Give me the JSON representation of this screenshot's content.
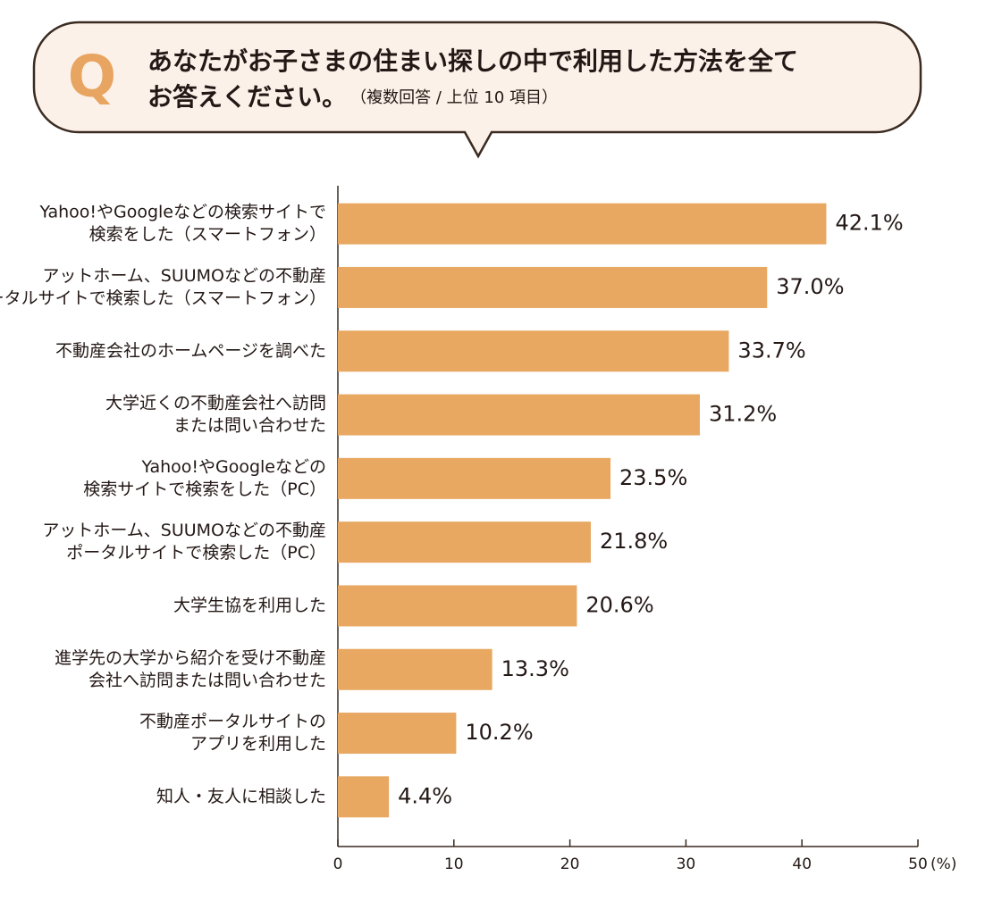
{
  "chart_data": {
    "type": "bar",
    "orientation": "horizontal",
    "q_label": "Q",
    "title": [
      "あなたがお子さまの住まい探しの中で利用した方法を全て",
      "お答えください。"
    ],
    "subtitle": "（複数回答 / 上位 10 項目）",
    "categories": [
      [
        "Yahoo!やGoogleなどの検索サイトで",
        "検索をした（スマートフォン）"
      ],
      [
        "アットホーム、SUUMOなどの不動産",
        "ポータルサイトで検索した（スマートフォン）"
      ],
      [
        "不動産会社のホームページを調べた"
      ],
      [
        "大学近くの不動産会社へ訪問",
        "または問い合わせた"
      ],
      [
        "Yahoo!やGoogleなどの",
        "検索サイトで検索をした（PC）"
      ],
      [
        "アットホーム、SUUMOなどの不動産",
        "ポータルサイトで検索した（PC）"
      ],
      [
        "大学生協を利用した"
      ],
      [
        "進学先の大学から紹介を受け不動産",
        "会社へ訪問または問い合わせた"
      ],
      [
        "不動産ポータルサイトの",
        "アプリを利用した"
      ],
      [
        "知人・友人に相談した"
      ]
    ],
    "values": [
      42.1,
      37.0,
      33.7,
      31.2,
      23.5,
      21.8,
      20.6,
      13.3,
      10.2,
      4.4
    ],
    "value_labels": [
      "42.1%",
      "37.0%",
      "33.7%",
      "31.2%",
      "23.5%",
      "21.8%",
      "20.6%",
      "13.3%",
      "10.2%",
      "4.4%"
    ],
    "color": "#e8a862",
    "xlim": [
      0,
      50
    ],
    "xticks": [
      0,
      10,
      20,
      30,
      40,
      50
    ],
    "x_unit": "(%)"
  }
}
